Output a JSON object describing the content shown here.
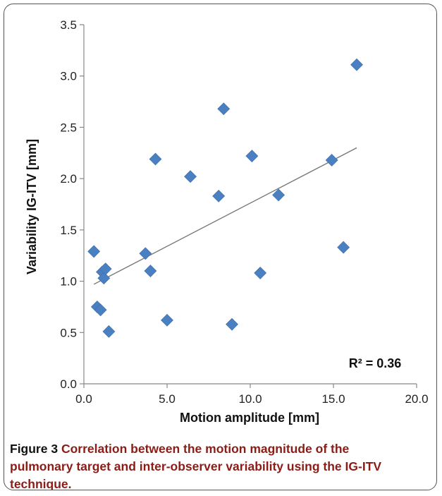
{
  "chart_data": {
    "type": "scatter",
    "xlabel": "Motion amplitude [mm]",
    "ylabel": "Variability IG-ITV [mm]",
    "xlim": [
      0,
      20
    ],
    "ylim": [
      0,
      3.5
    ],
    "x_ticks": [
      "0.0",
      "5.0",
      "10.0",
      "15.0",
      "20.0"
    ],
    "y_ticks": [
      "0.0",
      "0.5",
      "1.0",
      "1.5",
      "2.0",
      "2.5",
      "3.0",
      "3.5"
    ],
    "grid": false,
    "marker": "diamond",
    "marker_color": "#4a7fc1",
    "trendline_color": "#777777",
    "points": [
      {
        "x": 0.6,
        "y": 1.29
      },
      {
        "x": 0.8,
        "y": 0.75
      },
      {
        "x": 1.0,
        "y": 0.72
      },
      {
        "x": 1.1,
        "y": 1.09
      },
      {
        "x": 1.2,
        "y": 1.03
      },
      {
        "x": 1.3,
        "y": 1.12
      },
      {
        "x": 1.5,
        "y": 0.51
      },
      {
        "x": 3.7,
        "y": 1.27
      },
      {
        "x": 4.0,
        "y": 1.1
      },
      {
        "x": 4.3,
        "y": 2.19
      },
      {
        "x": 5.0,
        "y": 0.62
      },
      {
        "x": 6.4,
        "y": 2.02
      },
      {
        "x": 8.1,
        "y": 1.83
      },
      {
        "x": 8.4,
        "y": 2.68
      },
      {
        "x": 8.9,
        "y": 0.58
      },
      {
        "x": 10.1,
        "y": 2.22
      },
      {
        "x": 10.6,
        "y": 1.08
      },
      {
        "x": 11.7,
        "y": 1.84
      },
      {
        "x": 14.9,
        "y": 2.18
      },
      {
        "x": 15.6,
        "y": 1.33
      },
      {
        "x": 16.4,
        "y": 3.11
      }
    ],
    "trendline": {
      "x": [
        0.6,
        16.4
      ],
      "y": [
        0.97,
        2.3
      ]
    },
    "annotation": "R² = 0.36"
  },
  "caption": {
    "label": "Figure 3",
    "text": " Correlation between the motion magnitude of the pulmonary target and inter-observer variability using the IG-ITV technique."
  }
}
